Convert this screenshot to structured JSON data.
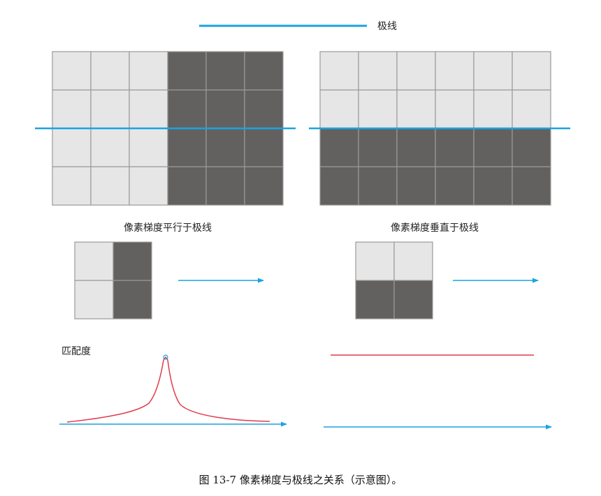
{
  "legend": {
    "label": "极线"
  },
  "panels": {
    "left_caption": "像素梯度平行于极线",
    "right_caption": "像素梯度垂直于极线"
  },
  "plot": {
    "ylabel": "匹配度"
  },
  "caption": "图 13-7   像素梯度与极线之关系（示意图）。",
  "colors": {
    "light_cell": "#e6e6e6",
    "dark_cell": "#636160",
    "cell_border": "#9a9a9a",
    "epipolar": "#1aa3e0",
    "curve": "#e23b4a"
  },
  "grids": {
    "left_big": {
      "rows": 4,
      "cols": 6,
      "pattern": [
        "LLLDDD",
        "LLLDDD",
        "LLLDDD",
        "LLLDDD"
      ]
    },
    "right_big": {
      "rows": 4,
      "cols": 6,
      "pattern": [
        "LLLLLL",
        "LLLLLL",
        "DDDDDD",
        "DDDDDD"
      ]
    },
    "left_small": {
      "rows": 2,
      "cols": 2,
      "pattern": [
        "LD",
        "LD"
      ]
    },
    "right_small": {
      "rows": 2,
      "cols": 2,
      "pattern": [
        "LL",
        "DD"
      ]
    }
  }
}
